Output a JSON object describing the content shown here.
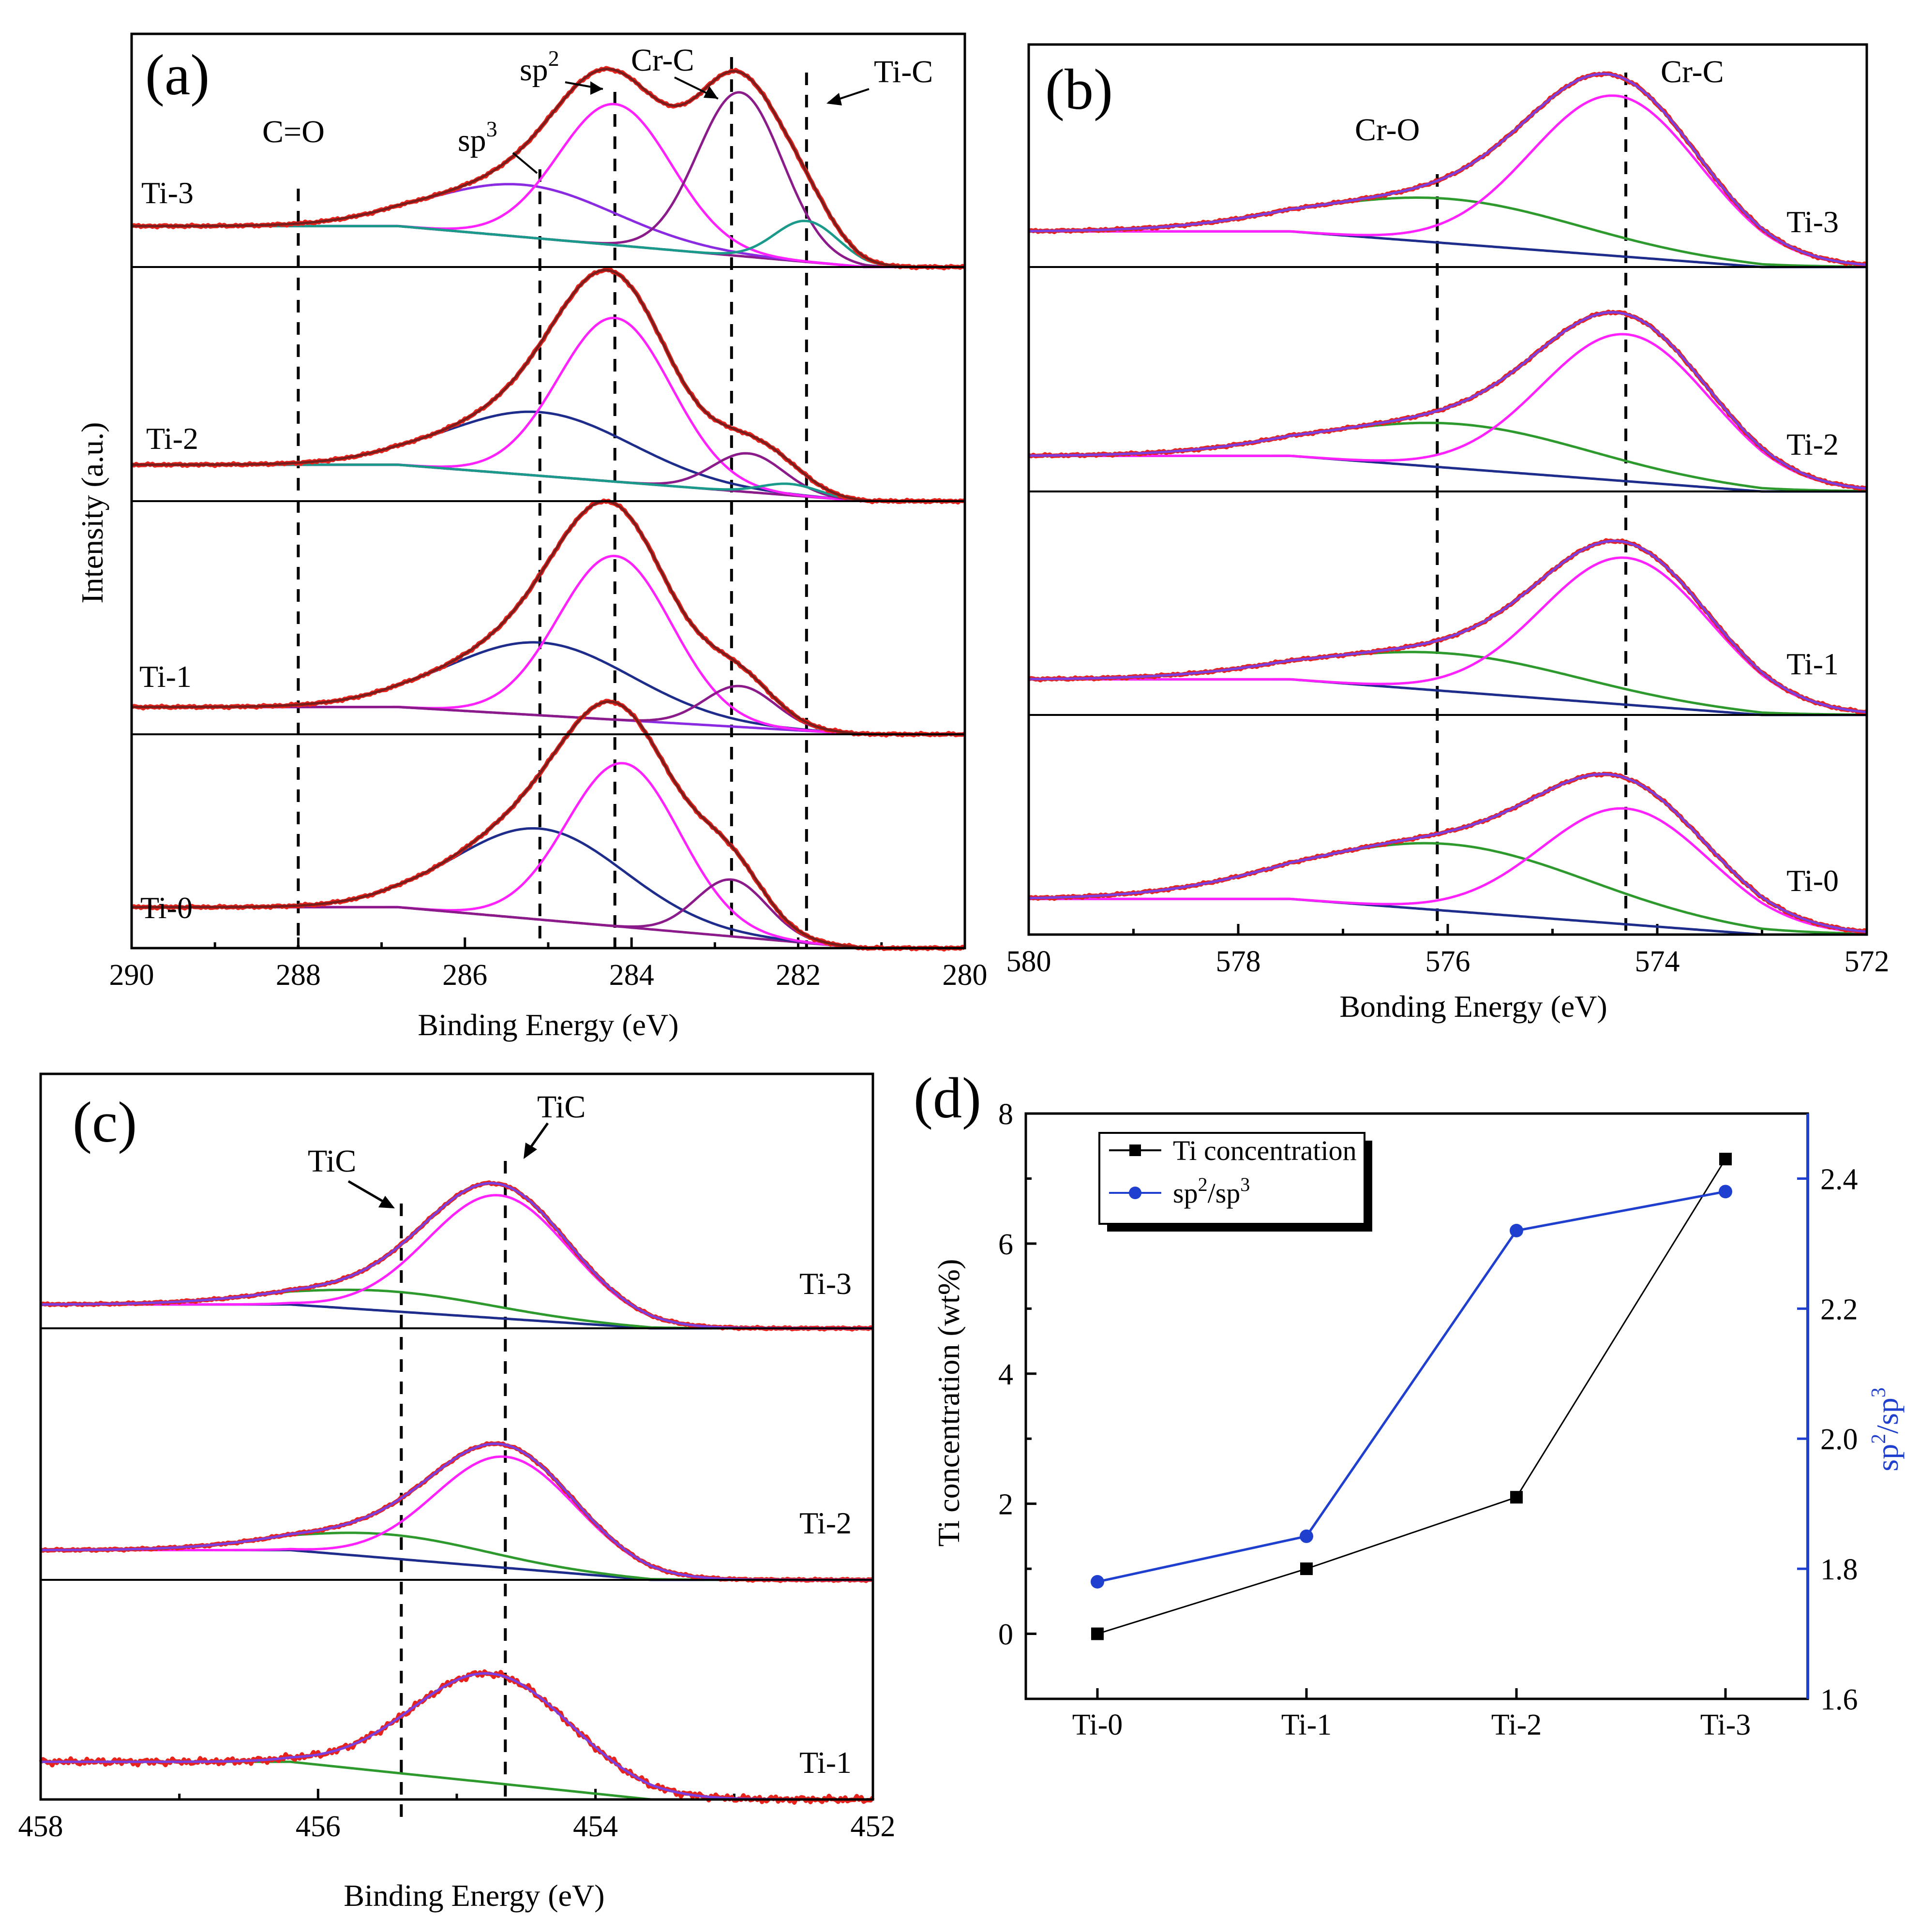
{
  "figure": {
    "panels": [
      "(a)",
      "(b)",
      "(c)",
      "(d)"
    ]
  },
  "colors": {
    "raw": "#e8231c",
    "envelope_a": "#7a1d1d",
    "envelope_bc": "#7b3fe0",
    "sp2": "#ff22ff",
    "sp3": "#8a2be2",
    "sp3_navy": "#1e2c8c",
    "crc_a": "#8b1a8b",
    "tic_a": "#1a9a8a",
    "background": "#1e2c8c",
    "green": "#2e9a2e",
    "ti_conc": "#000000",
    "ratio": "#1f3fcf"
  },
  "chart_data": [
    {
      "type": "line",
      "panel": "(a)",
      "xlabel": "Binding Energy (eV)",
      "ylabel": "Intensity (a.u.)",
      "xlim": [
        290,
        280
      ],
      "xticks": [
        "290",
        "288",
        "286",
        "284",
        "282",
        "280"
      ],
      "dashed_lines_eV": [
        288.0,
        285.1,
        284.2,
        282.8,
        281.9
      ],
      "peak_labels": [
        "C=O",
        "sp3",
        "sp2",
        "Cr-C",
        "Ti-C"
      ],
      "samples": [
        {
          "name": "Ti-3",
          "components": [
            {
              "name": "sp3",
              "center": 285.3,
              "height": 0.23,
              "fwhm": 2.6
            },
            {
              "name": "sp2",
              "center": 284.2,
              "height": 0.62,
              "fwhm": 1.6
            },
            {
              "name": "Cr-C",
              "center": 282.7,
              "height": 0.72,
              "fwhm": 1.2
            },
            {
              "name": "Ti-C",
              "center": 281.9,
              "height": 0.18,
              "fwhm": 0.9
            }
          ]
        },
        {
          "name": "Ti-2",
          "components": [
            {
              "name": "sp3",
              "center": 285.1,
              "height": 0.28,
              "fwhm": 2.6
            },
            {
              "name": "sp2",
              "center": 284.2,
              "height": 0.72,
              "fwhm": 1.6
            },
            {
              "name": "Cr-C",
              "center": 282.6,
              "height": 0.17,
              "fwhm": 1.0
            },
            {
              "name": "Ti-C",
              "center": 282.1,
              "height": 0.05,
              "fwhm": 0.8
            }
          ]
        },
        {
          "name": "Ti-1",
          "components": [
            {
              "name": "sp3",
              "center": 285.1,
              "height": 0.32,
              "fwhm": 2.6
            },
            {
              "name": "sp2",
              "center": 284.2,
              "height": 0.72,
              "fwhm": 1.6
            },
            {
              "name": "Cr-C",
              "center": 282.7,
              "height": 0.18,
              "fwhm": 1.0
            }
          ]
        },
        {
          "name": "Ti-0",
          "components": [
            {
              "name": "sp3",
              "center": 285.1,
              "height": 0.4,
              "fwhm": 2.4
            },
            {
              "name": "sp2",
              "center": 284.1,
              "height": 0.72,
              "fwhm": 1.6
            },
            {
              "name": "Cr-C",
              "center": 282.8,
              "height": 0.25,
              "fwhm": 1.0
            }
          ]
        }
      ]
    },
    {
      "type": "line",
      "panel": "(b)",
      "xlabel": "Bonding Energy (eV)",
      "xlim": [
        580,
        572
      ],
      "xticks": [
        "580",
        "578",
        "576",
        "574",
        "572"
      ],
      "dashed_lines_eV": [
        576.1,
        574.3
      ],
      "peak_labels": [
        "Cr-O",
        "Cr-C"
      ],
      "samples": [
        {
          "name": "Ti-3",
          "components": [
            {
              "name": "Cr-O",
              "center": 576.0,
              "height": 0.2,
              "fwhm": 3.0
            },
            {
              "name": "Cr-C",
              "center": 574.4,
              "height": 0.72,
              "fwhm": 1.9
            }
          ]
        },
        {
          "name": "Ti-2",
          "components": [
            {
              "name": "Cr-O",
              "center": 575.9,
              "height": 0.2,
              "fwhm": 3.0
            },
            {
              "name": "Cr-C",
              "center": 574.3,
              "height": 0.66,
              "fwhm": 1.9
            }
          ]
        },
        {
          "name": "Ti-1",
          "components": [
            {
              "name": "Cr-O",
              "center": 576.0,
              "height": 0.17,
              "fwhm": 3.0
            },
            {
              "name": "Cr-C",
              "center": 574.3,
              "height": 0.66,
              "fwhm": 1.9
            }
          ]
        },
        {
          "name": "Ti-0",
          "components": [
            {
              "name": "Cr-O",
              "center": 576.0,
              "height": 0.3,
              "fwhm": 3.2
            },
            {
              "name": "Cr-C",
              "center": 574.3,
              "height": 0.52,
              "fwhm": 1.9
            }
          ]
        }
      ]
    },
    {
      "type": "line",
      "panel": "(c)",
      "xlabel": "Binding Energy (eV)",
      "xlim": [
        458,
        452
      ],
      "xticks": [
        "458",
        "456",
        "454",
        "452"
      ],
      "dashed_lines_eV": [
        455.4,
        454.65
      ],
      "peak_labels": [
        "TiC",
        "TiC"
      ],
      "samples": [
        {
          "name": "Ti-3",
          "components": [
            {
              "name": "TiC-1",
              "center": 455.5,
              "height": 0.1,
              "fwhm": 1.8
            },
            {
              "name": "TiC-2",
              "center": 454.7,
              "height": 0.62,
              "fwhm": 1.2
            }
          ]
        },
        {
          "name": "Ti-2",
          "components": [
            {
              "name": "TiC-1",
              "center": 455.5,
              "height": 0.12,
              "fwhm": 1.7
            },
            {
              "name": "TiC-2",
              "center": 454.65,
              "height": 0.56,
              "fwhm": 1.2
            }
          ]
        },
        {
          "name": "Ti-1",
          "components": [
            {
              "name": "TiC-2",
              "center": 454.75,
              "height": 0.55,
              "fwhm": 1.35
            }
          ]
        }
      ]
    },
    {
      "type": "line",
      "panel": "(d)",
      "categories": [
        "Ti-0",
        "Ti-1",
        "Ti-2",
        "Ti-3"
      ],
      "ylabel": "Ti concentration (wt%)",
      "ylabel_right": "sp2/sp3",
      "ylim": [
        -1,
        8
      ],
      "ylim_right": [
        1.6,
        2.5
      ],
      "yticks": [
        "0",
        "2",
        "4",
        "6",
        "8"
      ],
      "yticks_right": [
        "1.6",
        "1.8",
        "2.0",
        "2.2",
        "2.4"
      ],
      "series": [
        {
          "name": "Ti concentration",
          "axis": "left",
          "values": [
            0,
            1.0,
            2.1,
            7.3
          ]
        },
        {
          "name": "sp2/sp3",
          "axis": "right",
          "values": [
            1.78,
            1.85,
            2.32,
            2.38
          ]
        }
      ],
      "legend": [
        "Ti concentration",
        "sp2/sp3"
      ]
    }
  ]
}
